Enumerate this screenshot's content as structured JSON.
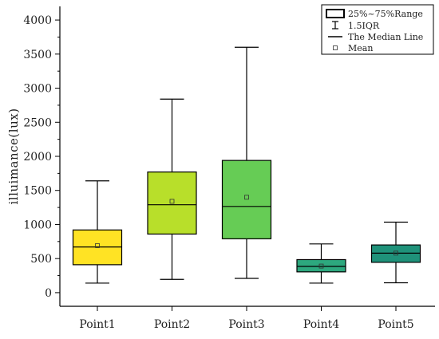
{
  "chart_data": {
    "type": "box",
    "xlabel": "",
    "ylabel": "illuimance(lux)",
    "ylim": [
      -200,
      4200
    ],
    "yticks": [
      0,
      500,
      1000,
      1500,
      2000,
      2500,
      3000,
      3500,
      4000
    ],
    "categories": [
      "Point1",
      "Point2",
      "Point3",
      "Point4",
      "Point5"
    ],
    "boxes": [
      {
        "name": "Point1",
        "whisker_low": 140,
        "q1": 410,
        "median": 670,
        "q3": 920,
        "whisker_high": 1640,
        "mean": 690,
        "color": "#ffe324"
      },
      {
        "name": "Point2",
        "whisker_low": 195,
        "q1": 860,
        "median": 1290,
        "q3": 1770,
        "whisker_high": 2840,
        "mean": 1340,
        "color": "#b8df2a"
      },
      {
        "name": "Point3",
        "whisker_low": 210,
        "q1": 790,
        "median": 1265,
        "q3": 1940,
        "whisker_high": 3600,
        "mean": 1400,
        "color": "#66cc55"
      },
      {
        "name": "Point4",
        "whisker_low": 140,
        "q1": 305,
        "median": 385,
        "q3": 485,
        "whisker_high": 715,
        "mean": 390,
        "color": "#2da87e"
      },
      {
        "name": "Point5",
        "whisker_low": 145,
        "q1": 445,
        "median": 580,
        "q3": 700,
        "whisker_high": 1035,
        "mean": 580,
        "color": "#1f927a"
      }
    ],
    "legend": {
      "position": "top-right",
      "items": [
        {
          "label": "25%~75%Range",
          "symbol": "box"
        },
        {
          "label": "1.5IQR",
          "symbol": "whisker"
        },
        {
          "label": "The Median Line",
          "symbol": "line"
        },
        {
          "label": "Mean",
          "symbol": "square"
        }
      ]
    },
    "grid": false
  }
}
